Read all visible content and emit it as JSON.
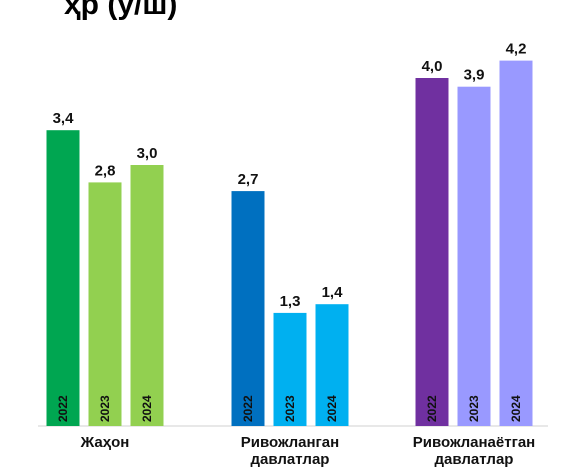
{
  "title_text": "ҳр (у/ш)",
  "chart_data": {
    "type": "bar",
    "title": "ҳр (у/ш)",
    "xlabel": "",
    "ylabel": "",
    "ylim": [
      0,
      4.5
    ],
    "grid": false,
    "legend": "none",
    "groups": [
      {
        "label": [
          "Жаҳон"
        ],
        "bars": [
          {
            "year": "2022",
            "value": 3.4,
            "label": "3,4",
            "color": "#00A651"
          },
          {
            "year": "2023",
            "value": 2.8,
            "label": "2,8",
            "color": "#92D050"
          },
          {
            "year": "2024",
            "value": 3.0,
            "label": "3,0",
            "color": "#92D050"
          }
        ]
      },
      {
        "label": [
          "Ривожланган",
          "давлатлар"
        ],
        "bars": [
          {
            "year": "2022",
            "value": 2.7,
            "label": "2,7",
            "color": "#0070C0"
          },
          {
            "year": "2023",
            "value": 1.3,
            "label": "1,3",
            "color": "#00B0F0"
          },
          {
            "year": "2024",
            "value": 1.4,
            "label": "1,4",
            "color": "#00B0F0"
          }
        ]
      },
      {
        "label": [
          "Ривожланаётган",
          "давлатлар"
        ],
        "bars": [
          {
            "year": "2022",
            "value": 4.0,
            "label": "4,0",
            "color": "#7030A0"
          },
          {
            "year": "2023",
            "value": 3.9,
            "label": "3,9",
            "color": "#9999FF"
          },
          {
            "year": "2024",
            "value": 4.2,
            "label": "4,2",
            "color": "#9999FF"
          }
        ]
      }
    ]
  }
}
